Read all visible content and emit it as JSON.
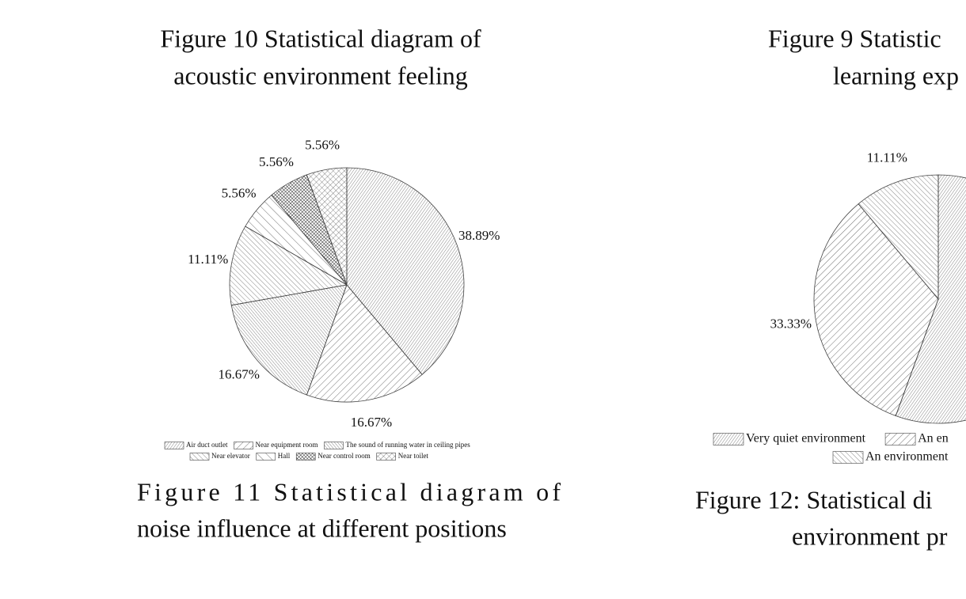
{
  "captions": {
    "figure10": [
      "Figure 10  Statistical diagram of",
      "acoustic environment feeling"
    ],
    "figure9": [
      "Figure 9  Statistic",
      "learning exp"
    ],
    "figure11": [
      "Figure 11   Statistical diagram of",
      "noise influence at different positions"
    ],
    "figure12": [
      "Figure 12:  Statistical di",
      "environment pr"
    ]
  },
  "chart_data": [
    {
      "type": "pie",
      "categories": [
        "Air duct outlet",
        "Near equipment room",
        "The sound of running water in ceiling pipes",
        "Near elevator",
        "Hall",
        "Near control room",
        "Near toilet"
      ],
      "values": [
        38.89,
        16.67,
        16.67,
        11.11,
        5.56,
        5.56,
        5.56
      ],
      "value_labels": [
        "38.89%",
        "16.67%",
        "16.67%",
        "11.11%",
        "5.56%",
        "5.56%",
        "5.56%"
      ],
      "patterns": [
        "diag-fine",
        "diag",
        "back-dense",
        "back",
        "back-wide",
        "cross-dense",
        "cross"
      ]
    },
    {
      "type": "pie",
      "categories": [
        "Very quiet environment",
        "An en",
        "An environment"
      ],
      "values": [
        55.56,
        33.33,
        11.11
      ],
      "value_labels": [
        null,
        "33.33%",
        "11.11%"
      ],
      "patterns": [
        "diag-fine",
        "diag",
        "back"
      ]
    }
  ]
}
